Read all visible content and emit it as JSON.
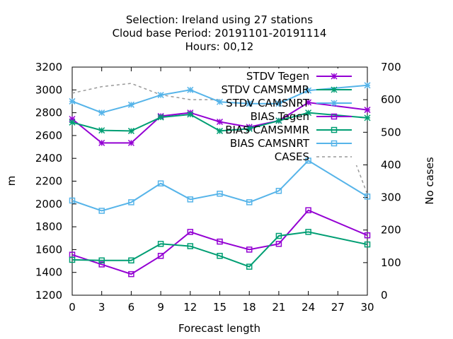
{
  "chart_data": {
    "type": "line",
    "title_lines": [
      "Selection: Ireland using    27 stations",
      "Cloud base   Period: 20191101-20191114",
      "Hours:  00,12"
    ],
    "xlabel": "Forecast length",
    "ylabel": "m",
    "y2label": "No cases",
    "x": [
      0,
      3,
      6,
      9,
      12,
      15,
      18,
      21,
      24,
      27,
      30
    ],
    "x_ticks": [
      "0",
      "3",
      "6",
      "9",
      "12",
      "15",
      "18",
      "21",
      "24",
      "27",
      "30"
    ],
    "xlim": [
      0,
      30
    ],
    "ylim": [
      1200,
      3200
    ],
    "y_ticks": [
      "1200",
      "1400",
      "1600",
      "1800",
      "2000",
      "2200",
      "2400",
      "2600",
      "2800",
      "3000",
      "3200"
    ],
    "y2lim": [
      0,
      700
    ],
    "y2_ticks": [
      "0",
      "100",
      "200",
      "300",
      "400",
      "500",
      "600",
      "700"
    ],
    "grid": false,
    "legend_position": "top-right",
    "series": [
      {
        "name": "STDV Tegen",
        "axis": "y",
        "color": "#9400d3",
        "marker": "star",
        "dashed": false,
        "x": [
          0,
          3,
          6,
          9,
          12,
          15,
          18,
          21,
          24,
          30
        ],
        "values": [
          2745,
          2535,
          2535,
          2770,
          2800,
          2720,
          2675,
          2730,
          2890,
          2825
        ]
      },
      {
        "name": "STDV CAMSMMR",
        "axis": "y",
        "color": "#009e73",
        "marker": "star",
        "dashed": false,
        "x": [
          0,
          3,
          6,
          9,
          12,
          15,
          18,
          21,
          24,
          30
        ],
        "values": [
          2715,
          2645,
          2640,
          2760,
          2785,
          2640,
          2660,
          2730,
          2800,
          2755
        ]
      },
      {
        "name": "STDV CAMSNRT",
        "axis": "y",
        "color": "#56b4e9",
        "marker": "star",
        "dashed": false,
        "x": [
          0,
          3,
          6,
          9,
          12,
          15,
          18,
          21,
          24,
          30
        ],
        "values": [
          2900,
          2800,
          2870,
          2955,
          3000,
          2895,
          2880,
          2880,
          2995,
          3040
        ]
      },
      {
        "name": "BIAS Tegen",
        "axis": "y",
        "color": "#9400d3",
        "marker": "square",
        "dashed": false,
        "x": [
          0,
          3,
          6,
          9,
          12,
          15,
          18,
          21,
          24,
          30
        ],
        "values": [
          1555,
          1470,
          1385,
          1545,
          1755,
          1670,
          1600,
          1650,
          1945,
          1725
        ]
      },
      {
        "name": "BIAS CAMSMMR",
        "axis": "y",
        "color": "#009e73",
        "marker": "square",
        "dashed": false,
        "x": [
          0,
          3,
          6,
          9,
          12,
          15,
          18,
          21,
          24,
          30
        ],
        "values": [
          1510,
          1505,
          1505,
          1650,
          1630,
          1545,
          1450,
          1720,
          1755,
          1645
        ]
      },
      {
        "name": "BIAS CAMSNRT",
        "axis": "y",
        "color": "#56b4e9",
        "marker": "square",
        "dashed": false,
        "x": [
          0,
          3,
          6,
          9,
          12,
          15,
          18,
          21,
          24,
          30
        ],
        "values": [
          2030,
          1940,
          2015,
          2180,
          2040,
          2090,
          2015,
          2115,
          2380,
          2065
        ]
      },
      {
        "name": "CASES",
        "axis": "y2",
        "color": "#999999",
        "marker": "none",
        "dashed": true,
        "x": [
          0,
          3,
          6,
          9,
          12,
          15,
          18,
          21,
          24,
          27,
          30
        ],
        "values": [
          620,
          640,
          650,
          615,
          600,
          600,
          590,
          580,
          580,
          550,
          310
        ]
      }
    ]
  }
}
